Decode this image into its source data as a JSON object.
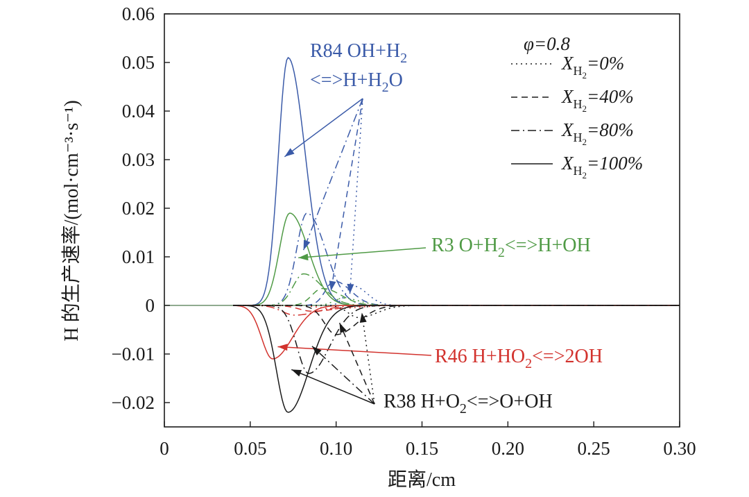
{
  "chart_data": {
    "type": "line",
    "xlabel": "距离/cm",
    "ylabel": "H 的生产速率/(mol·cm⁻³·s⁻¹)",
    "xlim": [
      0,
      0.3
    ],
    "ylim": [
      -0.025,
      0.06
    ],
    "x_ticks": [
      "0",
      "0.05",
      "0.10",
      "0.15",
      "0.20",
      "0.25",
      "0.30"
    ],
    "y_ticks": [
      "0.06",
      "0.05",
      "0.04",
      "0.03",
      "0.02",
      "0.01",
      "0",
      "−0.01",
      "−0.02"
    ],
    "grid": false,
    "legend": {
      "placement": "top-right",
      "title": "φ=0.8",
      "entries": [
        {
          "style": "dotted",
          "label": "X_H2=0%",
          "var": "X",
          "sub": "H",
          "sub2": "2",
          "value": "=0%"
        },
        {
          "style": "dashed",
          "label": "X_H2=40%",
          "var": "X",
          "sub": "H",
          "sub2": "2",
          "value": "=40%"
        },
        {
          "style": "dashdot",
          "label": "X_H2=80%",
          "var": "X",
          "sub": "H",
          "sub2": "2",
          "value": "=80%"
        },
        {
          "style": "solid",
          "label": "X_H2=100%",
          "var": "X",
          "sub": "H",
          "sub2": "2",
          "value": "=100%"
        }
      ]
    },
    "reactions": [
      {
        "id": "R84",
        "label_line1": "R84 OH+H",
        "sub1": "2",
        "label_line2": "<=>H+H",
        "sub2": "2",
        "label_line2_tail": "O",
        "color": "#3a5aa8",
        "peaks": [
          {
            "x": 0.11,
            "y": 0.004,
            "w": 0.006
          },
          {
            "x": 0.099,
            "y": 0.005,
            "w": 0.007
          },
          {
            "x": 0.083,
            "y": 0.019,
            "w": 0.008
          },
          {
            "x": 0.072,
            "y": 0.051,
            "w": 0.0075
          }
        ]
      },
      {
        "id": "R3",
        "label": "R3 O+H",
        "sub": "2",
        "label_tail": "<=>H+OH",
        "color": "#4f9a45",
        "peaks": [
          {
            "x": 0.104,
            "y": 0.0015,
            "w": 0.007
          },
          {
            "x": 0.092,
            "y": 0.0035,
            "w": 0.008
          },
          {
            "x": 0.081,
            "y": 0.0065,
            "w": 0.008
          },
          {
            "x": 0.073,
            "y": 0.019,
            "w": 0.008
          }
        ]
      },
      {
        "id": "R46",
        "label": "R46 H+HO",
        "sub": "2",
        "label_tail": "<=>2OH",
        "color": "#d2322d",
        "peaks": [
          {
            "x": 0.098,
            "y": -0.0007,
            "w": 0.01
          },
          {
            "x": 0.086,
            "y": -0.0012,
            "w": 0.01
          },
          {
            "x": 0.076,
            "y": -0.002,
            "w": 0.01
          },
          {
            "x": 0.063,
            "y": -0.011,
            "w": 0.0085
          }
        ]
      },
      {
        "id": "R38",
        "label": "R38 H+O",
        "sub": "2",
        "label_tail": "<=>O+OH",
        "color": "#1a1a1a",
        "peaks": [
          {
            "x": 0.113,
            "y": -0.0025,
            "w": 0.008
          },
          {
            "x": 0.1,
            "y": -0.006,
            "w": 0.009
          },
          {
            "x": 0.084,
            "y": -0.014,
            "w": 0.009
          },
          {
            "x": 0.072,
            "y": -0.022,
            "w": 0.009
          }
        ]
      }
    ]
  }
}
